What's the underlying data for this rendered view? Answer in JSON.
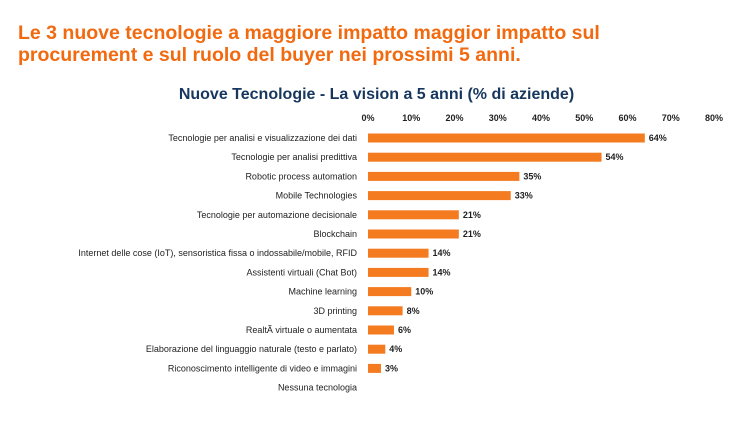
{
  "headline": {
    "line1": "Le 3 nuove tecnologie a maggiore impatto maggior impatto sul",
    "line2": "procurement e sul ruolo del buyer nei prossimi 5 anni."
  },
  "colors": {
    "headline": "#f26a10",
    "title": "#17375e",
    "bar": "#f47b20"
  },
  "chart_data": {
    "type": "bar",
    "orientation": "horizontal",
    "title": "Nuove Tecnologie - La vision a 5 anni (% di aziende)",
    "xlabel": "",
    "ylabel": "",
    "xlim": [
      0,
      80
    ],
    "grid": false,
    "legend": "none",
    "tick_labels": [
      "0%",
      "10%",
      "20%",
      "30%",
      "40%",
      "50%",
      "60%",
      "70%",
      "80%"
    ],
    "categories": [
      "Tecnologie per analisi e visualizzazione dei dati",
      "Tecnologie per analisi predittiva",
      "Robotic process automation",
      "Mobile Technologies",
      "Tecnologie per automazione decisionale",
      "Blockchain",
      "Internet delle cose (IoT), sensoristica fissa o indossabile/mobile, RFID",
      "Assistenti virtuali (Chat Bot)",
      "Machine learning",
      "3D printing",
      "RealtÃ  virtuale o aumentata",
      "Elaborazione del linguaggio naturale (testo e parlato)",
      "Riconoscimento intelligente di video e immagini",
      "Nessuna tecnologia"
    ],
    "values": [
      64,
      54,
      35,
      33,
      21,
      21,
      14,
      14,
      10,
      8,
      6,
      4,
      3,
      0
    ],
    "data_labels": [
      "64%",
      "54%",
      "35%",
      "33%",
      "21%",
      "21%",
      "14%",
      "14%",
      "10%",
      "8%",
      "6%",
      "4%",
      "3%",
      ""
    ]
  }
}
